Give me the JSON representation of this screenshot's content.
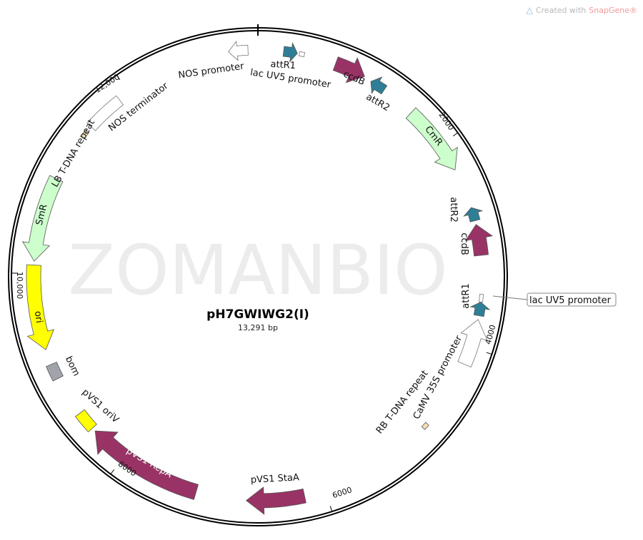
{
  "credit": {
    "prefix": "Created with",
    "brand": "SnapGene®",
    "icon": "snapgene-logo-icon"
  },
  "watermark": "ZOMANBIO",
  "plasmid": {
    "name": "pH7GWIWG2(I)",
    "length_label": "13,291 bp"
  },
  "ticks": [
    "2000",
    "4000",
    "6000",
    "8000",
    "10,000",
    "12,000"
  ],
  "features": [
    {
      "label": "NOS promoter",
      "color": "#ffffff",
      "type": "promoter"
    },
    {
      "label": "attR1",
      "color": "#2e7f96",
      "type": "att site"
    },
    {
      "label": "lac UV5 promoter",
      "color": "#ffffff",
      "type": "promoter"
    },
    {
      "label": "ccdB",
      "color": "#993366",
      "type": "gene"
    },
    {
      "label": "attR2",
      "color": "#2e7f96",
      "type": "att site"
    },
    {
      "label": "CmR",
      "color": "#ccffcc",
      "type": "marker"
    },
    {
      "label": "attR2",
      "color": "#2e7f96",
      "type": "att site"
    },
    {
      "label": "ccdB",
      "color": "#993366",
      "type": "gene"
    },
    {
      "label": "lac UV5 promoter",
      "color": "#ffffff",
      "type": "promoter"
    },
    {
      "label": "attR1",
      "color": "#2e7f96",
      "type": "att site"
    },
    {
      "label": "CaMV 35S promoter",
      "color": "#ffffff",
      "type": "promoter"
    },
    {
      "label": "RB T-DNA repeat",
      "color": "#f5deb3",
      "type": "repeat"
    },
    {
      "label": "pVS1 StaA",
      "color": "#993366",
      "type": "gene"
    },
    {
      "label": "pVS1 RepA",
      "color": "#993366",
      "type": "gene"
    },
    {
      "label": "pVS1 oriV",
      "color": "#ffff00",
      "type": "origin"
    },
    {
      "label": "bom",
      "color": "#a0a4aa",
      "type": "misc"
    },
    {
      "label": "ori",
      "color": "#ffff00",
      "type": "origin"
    },
    {
      "label": "SmR",
      "color": "#ccffcc",
      "type": "marker"
    },
    {
      "label": "LB T-DNA repeat",
      "color": "#f5deb3",
      "type": "repeat"
    },
    {
      "label": "NOS terminator",
      "color": "#ffffff",
      "type": "terminator"
    }
  ]
}
